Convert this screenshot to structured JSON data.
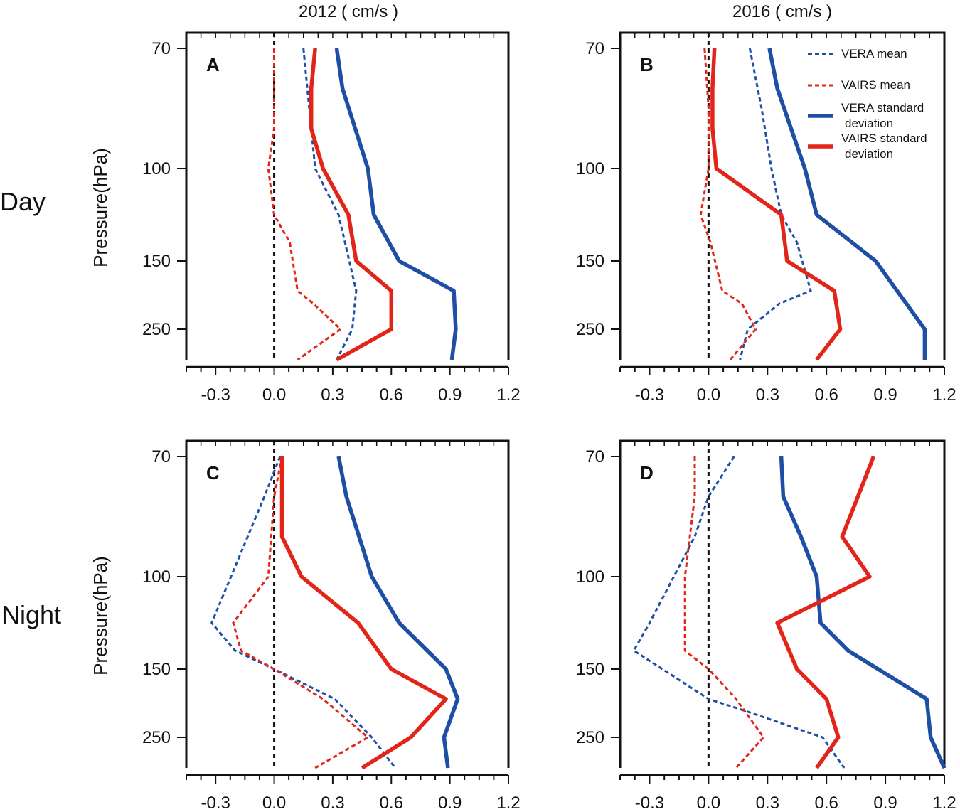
{
  "figure": {
    "column_titles": [
      "2012 ( cm/s )",
      "2016 ( cm/s )"
    ],
    "row_labels": [
      "Day",
      "Night"
    ],
    "ylabel": "Pressure(hPa)",
    "legend": {
      "vera_mean": "VERA  mean",
      "vairs_mean": "VAIRS mean",
      "vera_sd": [
        "VERA  standard",
        "deviation"
      ],
      "vairs_sd": [
        "VAIRS standard",
        "deviation"
      ]
    }
  },
  "colors": {
    "vera": "#1f4fa5",
    "vairs": "#e32419",
    "zero_line": "#111111"
  },
  "chart_data": [
    {
      "type": "line",
      "panel": "A",
      "row": "Day",
      "year": "2012",
      "xlim": [
        -0.45,
        1.2
      ],
      "xticks": [
        -0.3,
        0.0,
        0.3,
        0.6,
        0.9,
        1.2
      ],
      "xticklabels": [
        "-0.3",
        "0.0",
        "0.3",
        "0.6",
        "0.9",
        "1.2"
      ],
      "ylim_hPa": [
        70,
        300
      ],
      "yticks": [
        70,
        100,
        150,
        250
      ],
      "yticklabels": [
        "70",
        "100",
        "150",
        "250"
      ],
      "series": [
        {
          "name": "VERA  mean",
          "style": "dashed",
          "color": "#1f4fa5",
          "x": [
            0.15,
            0.19,
            0.21,
            0.33,
            0.42,
            0.4,
            0.32
          ],
          "pressure": [
            70,
            90,
            100,
            125,
            175,
            250,
            300
          ]
        },
        {
          "name": "VAIRS mean",
          "style": "dashed",
          "color": "#e32419",
          "x": [
            0.0,
            0.0,
            -0.03,
            0.0,
            0.08,
            0.12,
            0.2,
            0.34,
            0.12
          ],
          "pressure": [
            70,
            90,
            100,
            125,
            140,
            175,
            200,
            250,
            300
          ]
        },
        {
          "name": "VERA  standard deviation",
          "style": "solid",
          "color": "#1f4fa5",
          "x": [
            0.32,
            0.35,
            0.48,
            0.51,
            0.64,
            0.92,
            0.93,
            0.91
          ],
          "pressure": [
            70,
            80,
            100,
            125,
            150,
            175,
            250,
            300
          ]
        },
        {
          "name": "VAIRS standard deviation",
          "style": "solid",
          "color": "#e32419",
          "x": [
            0.21,
            0.19,
            0.19,
            0.25,
            0.38,
            0.42,
            0.6,
            0.6,
            0.32
          ],
          "pressure": [
            70,
            80,
            90,
            100,
            125,
            150,
            175,
            250,
            300
          ]
        }
      ]
    },
    {
      "type": "line",
      "panel": "B",
      "row": "Day",
      "year": "2016",
      "xlim": [
        -0.45,
        1.2
      ],
      "xticks": [
        -0.3,
        0.0,
        0.3,
        0.6,
        0.9,
        1.2
      ],
      "xticklabels": [
        "-0.3",
        "0.0",
        "0.3",
        "0.6",
        "0.9",
        "1.2"
      ],
      "ylim_hPa": [
        70,
        300
      ],
      "yticks": [
        70,
        100,
        150,
        250
      ],
      "yticklabels": [
        "70",
        "100",
        "150",
        "250"
      ],
      "series": [
        {
          "name": "VERA  mean",
          "style": "dashed",
          "color": "#1f4fa5",
          "x": [
            0.21,
            0.27,
            0.32,
            0.37,
            0.45,
            0.52,
            0.36,
            0.2,
            0.16
          ],
          "pressure": [
            70,
            85,
            100,
            125,
            140,
            175,
            200,
            250,
            300
          ]
        },
        {
          "name": "VAIRS mean",
          "style": "dashed",
          "color": "#e32419",
          "x": [
            -0.02,
            0.0,
            0.0,
            -0.04,
            0.01,
            0.07,
            0.17,
            0.24,
            0.11
          ],
          "pressure": [
            70,
            85,
            100,
            125,
            140,
            175,
            200,
            250,
            300
          ]
        },
        {
          "name": "VERA  standard deviation",
          "style": "solid",
          "color": "#1f4fa5",
          "x": [
            0.31,
            0.35,
            0.42,
            0.49,
            0.55,
            0.85,
            1.1,
            1.1
          ],
          "pressure": [
            70,
            80,
            90,
            100,
            125,
            150,
            250,
            300
          ]
        },
        {
          "name": "VAIRS standard deviation",
          "style": "solid",
          "color": "#e32419",
          "x": [
            0.03,
            0.02,
            0.02,
            0.04,
            0.37,
            0.4,
            0.64,
            0.67,
            0.55
          ],
          "pressure": [
            70,
            80,
            90,
            100,
            125,
            150,
            175,
            250,
            300
          ]
        }
      ]
    },
    {
      "type": "line",
      "panel": "C",
      "row": "Night",
      "year": "2012",
      "xlim": [
        -0.45,
        1.2
      ],
      "xticks": [
        -0.3,
        0.0,
        0.3,
        0.6,
        0.9,
        1.2
      ],
      "xticklabels": [
        "-0.3",
        "0.0",
        "0.3",
        "0.6",
        "0.9",
        "1.2"
      ],
      "ylim_hPa": [
        70,
        300
      ],
      "yticks": [
        70,
        100,
        150,
        250
      ],
      "yticklabels": [
        "70",
        "100",
        "150",
        "250"
      ],
      "series": [
        {
          "name": "VERA  mean",
          "style": "dashed",
          "color": "#1f4fa5",
          "x": [
            0.03,
            -0.05,
            -0.32,
            -0.2,
            0.0,
            0.31,
            0.5,
            0.62
          ],
          "pressure": [
            70,
            80,
            125,
            140,
            150,
            175,
            250,
            300
          ]
        },
        {
          "name": "VAIRS mean",
          "style": "dashed",
          "color": "#e32419",
          "x": [
            0.04,
            0.0,
            -0.03,
            -0.21,
            -0.17,
            0.0,
            0.25,
            0.48,
            0.21
          ],
          "pressure": [
            70,
            80,
            100,
            125,
            140,
            150,
            175,
            250,
            300
          ]
        },
        {
          "name": "VERA  standard deviation",
          "style": "solid",
          "color": "#1f4fa5",
          "x": [
            0.33,
            0.37,
            0.5,
            0.64,
            0.88,
            0.94,
            0.87,
            0.89
          ],
          "pressure": [
            70,
            80,
            100,
            125,
            150,
            175,
            250,
            300
          ]
        },
        {
          "name": "VAIRS standard deviation",
          "style": "solid",
          "color": "#e32419",
          "x": [
            0.04,
            0.04,
            0.04,
            0.14,
            0.43,
            0.6,
            0.88,
            0.7,
            0.45
          ],
          "pressure": [
            70,
            80,
            90,
            100,
            125,
            150,
            175,
            250,
            300
          ]
        }
      ]
    },
    {
      "type": "line",
      "panel": "D",
      "row": "Night",
      "year": "2016",
      "xlim": [
        -0.45,
        1.2
      ],
      "xticks": [
        -0.3,
        0.0,
        0.3,
        0.6,
        0.9,
        1.2
      ],
      "xticklabels": [
        "-0.3",
        "0.0",
        "0.3",
        "0.6",
        "0.9",
        "1.2"
      ],
      "ylim_hPa": [
        70,
        300
      ],
      "yticks": [
        70,
        100,
        150,
        250
      ],
      "yticklabels": [
        "70",
        "100",
        "150",
        "250"
      ],
      "series": [
        {
          "name": "VERA  mean",
          "style": "dashed",
          "color": "#1f4fa5",
          "x": [
            0.13,
            0.0,
            -0.07,
            -0.3,
            -0.38,
            0.0,
            0.2,
            0.58,
            0.69
          ],
          "pressure": [
            70,
            80,
            90,
            125,
            140,
            175,
            200,
            250,
            300
          ]
        },
        {
          "name": "VAIRS mean",
          "style": "dashed",
          "color": "#e32419",
          "x": [
            -0.07,
            -0.07,
            -0.12,
            -0.12,
            -0.12,
            0.0,
            0.14,
            0.28,
            0.14
          ],
          "pressure": [
            70,
            80,
            100,
            125,
            140,
            150,
            175,
            250,
            300
          ]
        },
        {
          "name": "VERA  standard deviation",
          "style": "solid",
          "color": "#1f4fa5",
          "x": [
            0.37,
            0.38,
            0.47,
            0.55,
            0.57,
            0.71,
            1.11,
            1.13,
            1.2
          ],
          "pressure": [
            70,
            80,
            90,
            100,
            125,
            140,
            175,
            250,
            300
          ]
        },
        {
          "name": "VAIRS standard deviation",
          "style": "solid",
          "color": "#e32419",
          "x": [
            0.84,
            0.68,
            0.82,
            0.35,
            0.45,
            0.6,
            0.66,
            0.55
          ],
          "pressure": [
            70,
            90,
            100,
            125,
            150,
            175,
            250,
            300
          ]
        }
      ]
    }
  ]
}
